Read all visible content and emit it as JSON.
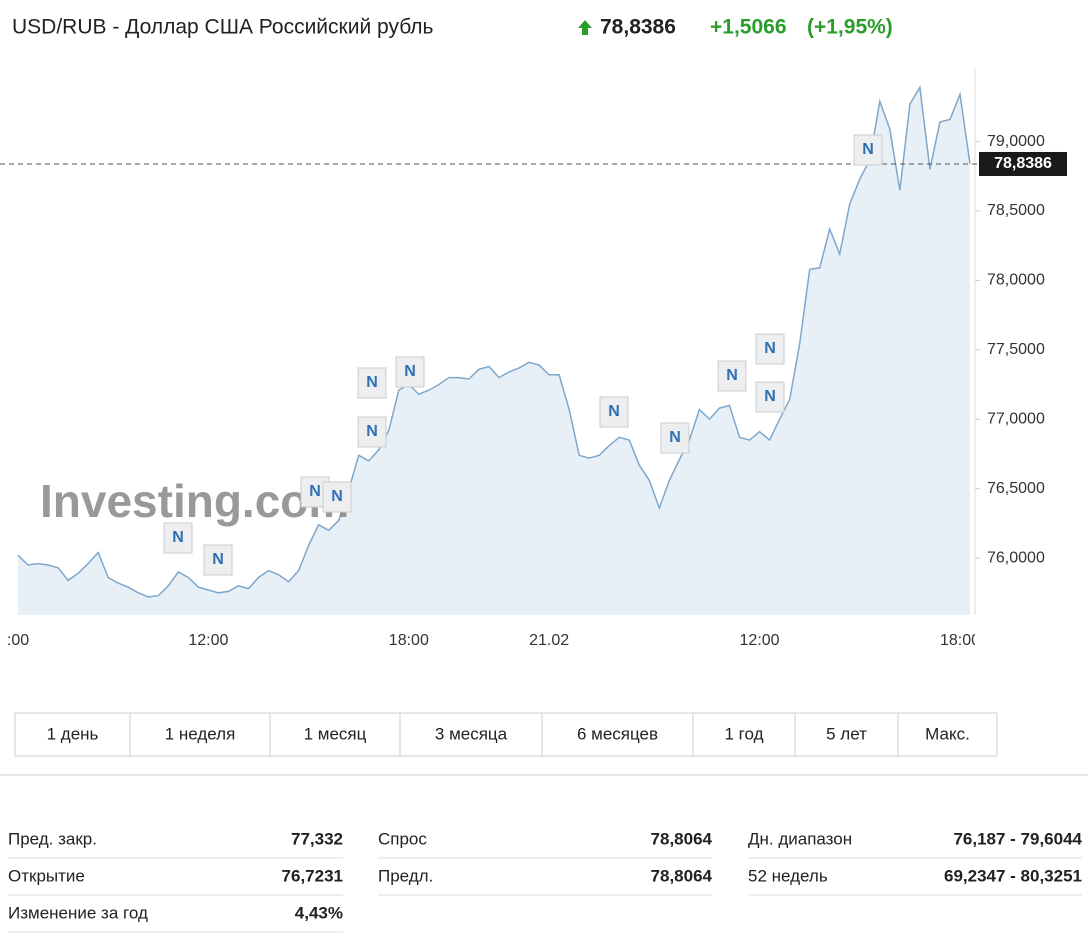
{
  "header": {
    "title": "USD/RUB - Доллар США Российский рубль",
    "price": "78,8386",
    "change": "+1,5066",
    "change_pct": "(+1,95%)"
  },
  "chart_data": {
    "type": "line",
    "watermark": "Investing.com",
    "news_label": "N",
    "categories": [
      ":00",
      null,
      null,
      null,
      null,
      null,
      null,
      null,
      null,
      null,
      null,
      null,
      null,
      null,
      null,
      null,
      null,
      null,
      null,
      "12:00",
      null,
      null,
      null,
      null,
      null,
      null,
      null,
      null,
      null,
      null,
      null,
      null,
      null,
      null,
      null,
      null,
      null,
      null,
      null,
      "18:00",
      null,
      null,
      null,
      null,
      null,
      null,
      null,
      null,
      null,
      null,
      null,
      null,
      null,
      "21.02",
      null,
      null,
      null,
      null,
      null,
      null,
      null,
      null,
      null,
      null,
      null,
      null,
      null,
      null,
      null,
      null,
      null,
      null,
      null,
      null,
      "12:00",
      null,
      null,
      null,
      null,
      null,
      null,
      null,
      null,
      null,
      null,
      null,
      null,
      null,
      null,
      null,
      null,
      null,
      null,
      null,
      "18:00",
      null
    ],
    "series": [
      {
        "name": "USD/RUB",
        "color": "#7ea7cc",
        "values": [
          76.02,
          75.95,
          75.96,
          75.95,
          75.93,
          75.84,
          75.89,
          75.96,
          76.04,
          75.86,
          75.82,
          75.79,
          75.75,
          75.72,
          75.73,
          75.8,
          75.9,
          75.86,
          75.79,
          75.77,
          75.75,
          75.76,
          75.8,
          75.78,
          75.86,
          75.91,
          75.88,
          75.83,
          75.91,
          76.09,
          76.24,
          76.2,
          76.27,
          76.49,
          76.74,
          76.7,
          76.78,
          76.92,
          77.21,
          77.25,
          77.18,
          77.21,
          77.25,
          77.3,
          77.3,
          77.29,
          77.36,
          77.38,
          77.3,
          77.34,
          77.37,
          77.41,
          77.39,
          77.32,
          77.32,
          77.07,
          76.74,
          76.72,
          76.74,
          76.81,
          76.87,
          76.85,
          76.67,
          76.56,
          76.36,
          76.56,
          76.71,
          76.85,
          77.07,
          77.0,
          77.08,
          77.1,
          76.87,
          76.85,
          76.91,
          76.85,
          77.0,
          77.14,
          77.54,
          78.08,
          78.09,
          78.37,
          78.19,
          78.55,
          78.73,
          78.87,
          79.29,
          79.09,
          78.65,
          79.27,
          79.39,
          78.8,
          79.14,
          79.16,
          79.34,
          78.84
        ]
      }
    ],
    "ylim": [
      75.59,
      79.53
    ],
    "yticks": [
      {
        "value": 76,
        "label": "76,0000"
      },
      {
        "value": 76.5,
        "label": "76,5000"
      },
      {
        "value": 77,
        "label": "77,0000"
      },
      {
        "value": 77.5,
        "label": "77,5000"
      },
      {
        "value": 78,
        "label": "78,0000"
      },
      {
        "value": 78.5,
        "label": "78,5000"
      },
      {
        "value": 79,
        "label": "79,0000"
      }
    ],
    "current": {
      "value": 78.8386,
      "label": "78,8386"
    },
    "grid": false
  },
  "ranges": [
    "1 день",
    "1 неделя",
    "1 месяц",
    "3 месяца",
    "6 месяцев",
    "1 год",
    "5 лет",
    "Макс."
  ],
  "stats": [
    [
      [
        "Пред. закр.",
        "77,332"
      ],
      [
        "Открытие",
        "76,7231"
      ],
      [
        "Изменение за год",
        "4,43%"
      ]
    ],
    [
      [
        "Спрос",
        "78,8064"
      ],
      [
        "Предл.",
        "78,8064"
      ]
    ],
    [
      [
        "Дн. диапазон",
        "76,187 - 79,6044"
      ],
      [
        "52 недель",
        "69,2347 - 80,3251"
      ]
    ]
  ]
}
